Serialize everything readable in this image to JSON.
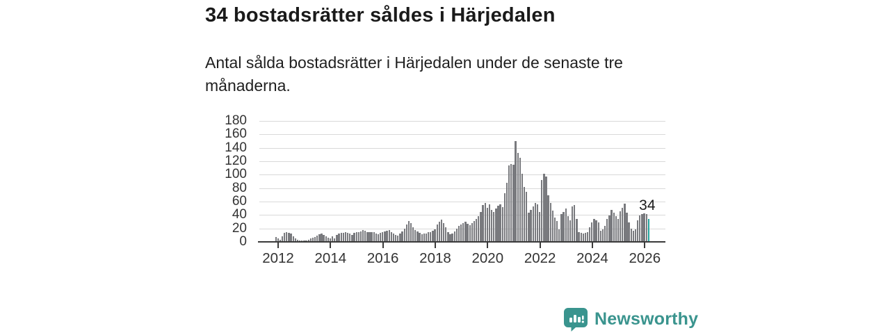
{
  "header": {
    "title": "34 bostadsrätter såldes i Härjedalen",
    "subtitle": "Antal sålda bostadsrätter i Härjedalen under de senaste tre månaderna."
  },
  "footer": {
    "brand": "Newsworthy"
  },
  "colors": {
    "bar": "#797a7e",
    "highlight": "#21a29b",
    "axis": "#3a3a3a",
    "gridline": "#d9d9d9",
    "brand_teal": "#3a948e",
    "text": "#1a1a1a"
  },
  "chart_data": {
    "type": "bar",
    "title": "34 bostadsrätter såldes i Härjedalen",
    "xlabel": "",
    "ylabel": "",
    "frequency": "monthly",
    "x_start_month": "2011-11",
    "x_end_month": "2026-02",
    "values": [
      7,
      5,
      3,
      8,
      13,
      15,
      13,
      12,
      8,
      5,
      3,
      2,
      2,
      2,
      2,
      3,
      5,
      6,
      7,
      9,
      11,
      12,
      10,
      8,
      6,
      5,
      8,
      5,
      10,
      12,
      13,
      13,
      15,
      13,
      12,
      10,
      13,
      15,
      15,
      16,
      18,
      17,
      15,
      14,
      15,
      14,
      12,
      11,
      13,
      15,
      16,
      17,
      18,
      15,
      12,
      10,
      9,
      12,
      16,
      20,
      26,
      31,
      28,
      22,
      18,
      16,
      13,
      11,
      12,
      12,
      14,
      15,
      17,
      19,
      26,
      30,
      33,
      28,
      22,
      14,
      11,
      12,
      16,
      20,
      24,
      26,
      28,
      30,
      27,
      25,
      28,
      31,
      34,
      38,
      44,
      55,
      58,
      51,
      56,
      48,
      44,
      50,
      54,
      56,
      52,
      72,
      88,
      114,
      116,
      115,
      150,
      132,
      125,
      101,
      82,
      75,
      43,
      48,
      53,
      58,
      56,
      44,
      92,
      101,
      97,
      69,
      58,
      47,
      36,
      31,
      19,
      41,
      45,
      50,
      38,
      32,
      53,
      55,
      34,
      15,
      13,
      12,
      13,
      15,
      22,
      29,
      34,
      32,
      29,
      17,
      19,
      24,
      34,
      39,
      48,
      43,
      38,
      34,
      46,
      51,
      57,
      43,
      29,
      20,
      17,
      19,
      32,
      39,
      41,
      42,
      41,
      34
    ],
    "highlight": {
      "index": 171,
      "value": 34,
      "label": "34"
    },
    "x_tick_labels": [
      "2012",
      "2014",
      "2016",
      "2018",
      "2020",
      "2022",
      "2024",
      "2026"
    ],
    "y_ticks": [
      0,
      20,
      40,
      60,
      80,
      100,
      120,
      140,
      160,
      180
    ],
    "ylim": [
      0,
      186
    ],
    "grid": "horizontal",
    "legend": "none"
  }
}
